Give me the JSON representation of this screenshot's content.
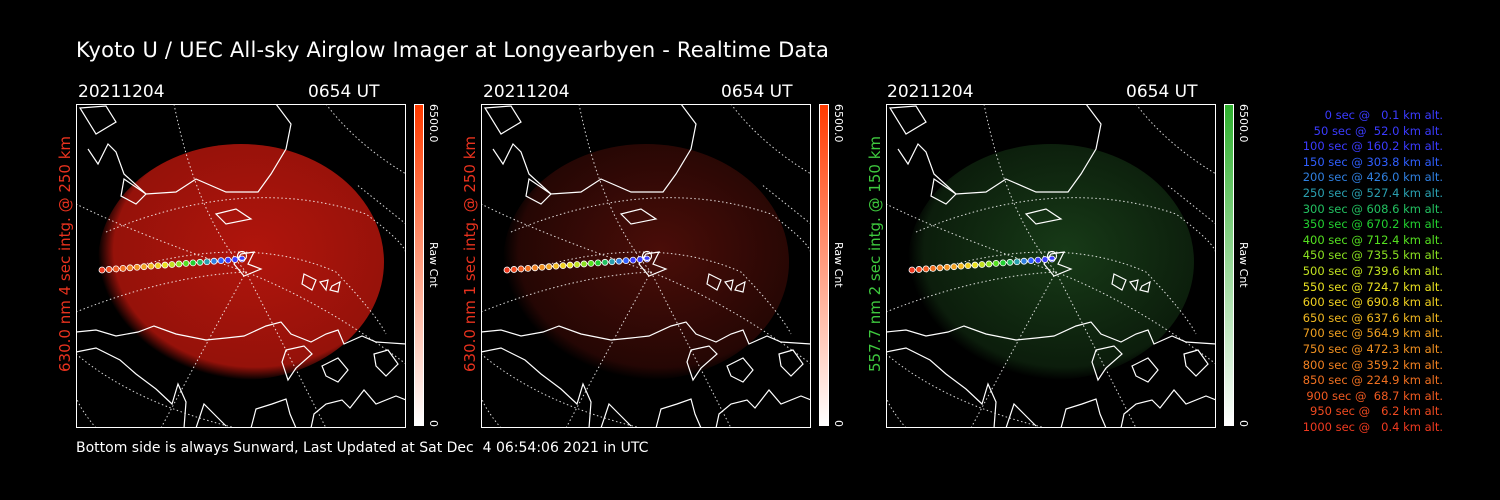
{
  "title": "Kyoto U / UEC All-sky Airglow Imager at Longyearbyen - Realtime Data",
  "panels": [
    {
      "date": "20211204",
      "time": "0654 UT",
      "ylabel": "630.0 nm 4 sec intg. @ 250 km",
      "label_color": "#e8321e",
      "cbar_max": "6500.0",
      "cbar_min": "0",
      "cbar_unit": "Raw Cnt",
      "cbar_color": "#ff3a00",
      "glow_color": "#b0150c",
      "glow_level": 0.85
    },
    {
      "date": "20211204",
      "time": "0654 UT",
      "ylabel": "630.0 nm 1 sec intg. @ 250 km",
      "label_color": "#e8321e",
      "cbar_max": "6500.0",
      "cbar_min": "0",
      "cbar_unit": "Raw Cnt",
      "cbar_color": "#ff3a00",
      "glow_color": "#4a0d08",
      "glow_level": 0.5
    },
    {
      "date": "20211204",
      "time": "0654 UT",
      "ylabel": "557.7 nm 2 sec intg. @ 150 km",
      "label_color": "#3ec83e",
      "cbar_max": "6500.0",
      "cbar_min": "0",
      "cbar_unit": "Raw Cnt",
      "cbar_color": "#2fb02f",
      "glow_color": "#173a17",
      "glow_level": 0.5
    }
  ],
  "footer": "Bottom side is always Sunward, Last Updated at Sat Dec  4 06:54:06 2021 in UTC",
  "trajectory_legend": [
    {
      "text": "0 sec @   0.1 km alt.",
      "color": "#3b3bff"
    },
    {
      "text": "50 sec @  52.0 km alt.",
      "color": "#3b3bff"
    },
    {
      "text": "100 sec @ 160.2 km alt.",
      "color": "#3b3bff"
    },
    {
      "text": "150 sec @ 303.8 km alt.",
      "color": "#2f5fff"
    },
    {
      "text": "200 sec @ 426.0 km alt.",
      "color": "#2f7fe0"
    },
    {
      "text": "250 sec @ 527.4 km alt.",
      "color": "#2aa0b0"
    },
    {
      "text": "300 sec @ 608.6 km alt.",
      "color": "#22c060"
    },
    {
      "text": "350 sec @ 670.2 km alt.",
      "color": "#22d030"
    },
    {
      "text": "400 sec @ 712.4 km alt.",
      "color": "#55e020"
    },
    {
      "text": "450 sec @ 735.5 km alt.",
      "color": "#8ae020"
    },
    {
      "text": "500 sec @ 739.6 km alt.",
      "color": "#c0e020"
    },
    {
      "text": "550 sec @ 724.7 km alt.",
      "color": "#e8e020"
    },
    {
      "text": "600 sec @ 690.8 km alt.",
      "color": "#f0d020"
    },
    {
      "text": "650 sec @ 637.6 km alt.",
      "color": "#f0b820"
    },
    {
      "text": "700 sec @ 564.9 km alt.",
      "color": "#f0a020"
    },
    {
      "text": "750 sec @ 472.3 km alt.",
      "color": "#f09020"
    },
    {
      "text": "800 sec @ 359.2 km alt.",
      "color": "#f08020"
    },
    {
      "text": "850 sec @ 224.9 km alt.",
      "color": "#f07020"
    },
    {
      "text": "900 sec @  68.7 km alt.",
      "color": "#f05a20"
    },
    {
      "text": "950 sec @   6.2 km alt.",
      "color": "#f04a20"
    },
    {
      "text": "1000 sec @   0.4 km alt.",
      "color": "#f03a20"
    }
  ]
}
